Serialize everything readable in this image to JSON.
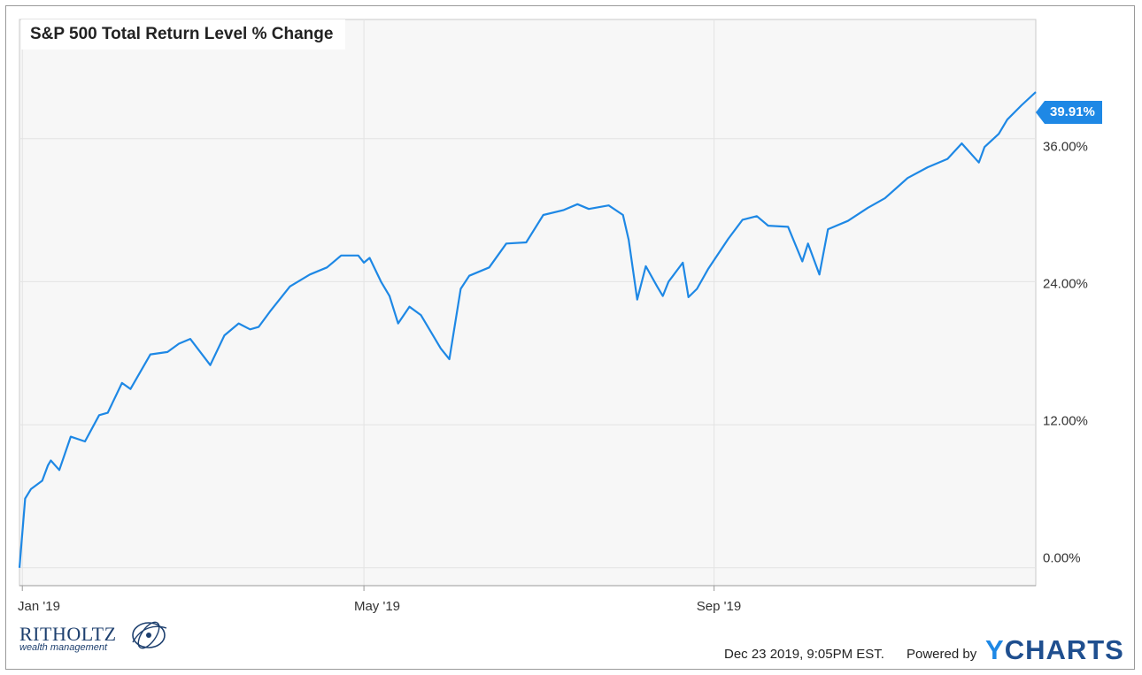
{
  "chart_data": {
    "type": "line",
    "title": "S&P 500 Total Return Level % Change",
    "xlabel": "",
    "ylabel": "",
    "x_ticks": [
      "Jan '19",
      "May '19",
      "Sep '19"
    ],
    "y_ticks": [
      "0.00%",
      "12.00%",
      "24.00%",
      "36.00%"
    ],
    "ylim": [
      -1.5,
      46
    ],
    "xlim": [
      "2018-12-31",
      "2019-12-23"
    ],
    "grid": true,
    "end_label": "39.91%",
    "series": [
      {
        "color": "#1e88e5",
        "x": [
          "2018-12-31",
          "2019-01-02",
          "2019-01-04",
          "2019-01-08",
          "2019-01-10",
          "2019-01-11",
          "2019-01-14",
          "2019-01-18",
          "2019-01-23",
          "2019-01-28",
          "2019-01-31",
          "2019-02-05",
          "2019-02-08",
          "2019-02-15",
          "2019-02-21",
          "2019-02-25",
          "2019-03-01",
          "2019-03-08",
          "2019-03-13",
          "2019-03-18",
          "2019-03-22",
          "2019-03-25",
          "2019-03-29",
          "2019-04-05",
          "2019-04-12",
          "2019-04-18",
          "2019-04-23",
          "2019-04-29",
          "2019-05-01",
          "2019-05-03",
          "2019-05-07",
          "2019-05-10",
          "2019-05-13",
          "2019-05-17",
          "2019-05-21",
          "2019-05-28",
          "2019-05-31",
          "2019-06-04",
          "2019-06-07",
          "2019-06-14",
          "2019-06-20",
          "2019-06-27",
          "2019-07-03",
          "2019-07-10",
          "2019-07-15",
          "2019-07-19",
          "2019-07-26",
          "2019-07-31",
          "2019-08-02",
          "2019-08-05",
          "2019-08-08",
          "2019-08-12",
          "2019-08-14",
          "2019-08-16",
          "2019-08-21",
          "2019-08-23",
          "2019-08-26",
          "2019-08-30",
          "2019-09-06",
          "2019-09-11",
          "2019-09-16",
          "2019-09-20",
          "2019-09-27",
          "2019-10-02",
          "2019-10-04",
          "2019-10-08",
          "2019-10-11",
          "2019-10-18",
          "2019-10-25",
          "2019-10-31",
          "2019-11-08",
          "2019-11-15",
          "2019-11-22",
          "2019-11-27",
          "2019-12-03",
          "2019-12-05",
          "2019-12-10",
          "2019-12-13",
          "2019-12-18",
          "2019-12-23"
        ],
        "values": [
          0.0,
          5.8,
          6.6,
          7.3,
          8.6,
          9.0,
          8.2,
          11.0,
          10.6,
          12.8,
          13.0,
          15.5,
          15.0,
          17.9,
          18.1,
          18.8,
          19.2,
          17.0,
          19.5,
          20.5,
          20.0,
          20.2,
          21.5,
          23.6,
          24.6,
          25.2,
          26.2,
          26.2,
          25.6,
          26.0,
          24.0,
          22.8,
          20.5,
          21.9,
          21.2,
          18.4,
          17.5,
          23.4,
          24.5,
          25.2,
          27.2,
          27.3,
          29.6,
          30.0,
          30.5,
          30.1,
          30.4,
          29.6,
          27.5,
          22.5,
          25.3,
          23.6,
          22.8,
          24.0,
          25.6,
          22.7,
          23.4,
          25.1,
          27.6,
          29.2,
          29.5,
          28.7,
          28.6,
          25.7,
          27.2,
          24.6,
          28.4,
          29.1,
          30.2,
          31.0,
          32.7,
          33.6,
          34.3,
          35.6,
          34.0,
          35.3,
          36.4,
          37.6,
          38.8,
          39.91
        ]
      }
    ]
  },
  "footer": {
    "brand_name": "RITHOLTZ",
    "brand_sub": "wealth management",
    "timestamp": "Dec 23 2019, 9:05PM EST.",
    "powered_by": "Powered by",
    "provider_y": "Y",
    "provider_rest": "CHARTS"
  }
}
